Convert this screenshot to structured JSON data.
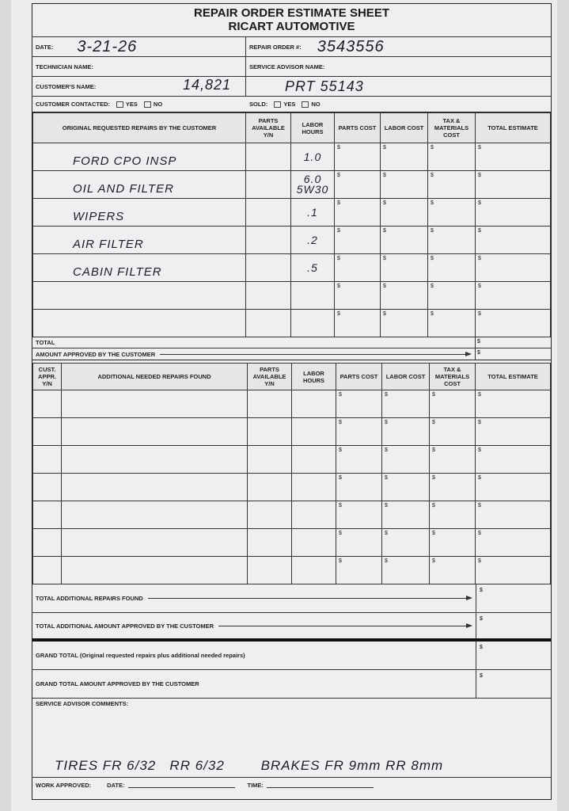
{
  "form": {
    "title": "REPAIR ORDER ESTIMATE SHEET",
    "company": "RICART AUTOMOTIVE"
  },
  "header": {
    "date_label": "DATE:",
    "date_value": "3-21-26",
    "ro_label": "REPAIR ORDER #:",
    "ro_value": "3543556",
    "technician_label": "TECHNICIAN NAME:",
    "technician_value": "",
    "advisor_label": "SERVICE ADVISOR NAME:",
    "advisor_value": "",
    "customer_label": "CUSTOMER'S NAME:",
    "customer_value": "14,821",
    "customer_value2": "PRT 55143",
    "contacted_label": "CUSTOMER CONTACTED:",
    "sold_label": "SOLD:",
    "yes": "YES",
    "no": "NO"
  },
  "original": {
    "headers": [
      "ORIGINAL REQUESTED REPAIRS BY THE CUSTOMER",
      "PARTS AVAILABLE Y/N",
      "LABOR HOURS",
      "PARTS COST",
      "LABOR COST",
      "TAX & MATERIALS COST",
      "TOTAL ESTIMATE"
    ],
    "rows": [
      {
        "repair": "FORD CPO INSP",
        "parts": "",
        "hours": "1.0"
      },
      {
        "repair": "OIL AND FILTER",
        "parts": "",
        "hours": "6.0 5W30"
      },
      {
        "repair": "WIPERS",
        "parts": "",
        "hours": ".1"
      },
      {
        "repair": "AIR FILTER",
        "parts": "",
        "hours": ".2"
      },
      {
        "repair": "CABIN FILTER",
        "parts": "",
        "hours": ".5"
      },
      {
        "repair": "",
        "parts": "",
        "hours": ""
      },
      {
        "repair": "",
        "parts": "",
        "hours": ""
      }
    ],
    "currency": "$",
    "total_label": "TOTAL",
    "approved_label": "AMOUNT APPROVED BY THE CUSTOMER"
  },
  "additional": {
    "headers": [
      "CUST. APPR. Y/N",
      "ADDITIONAL NEEDED REPAIRS FOUND",
      "PARTS AVAILABLE Y/N",
      "LABOR HOURS",
      "PARTS COST",
      "LABOR COST",
      "TAX & MATERIALS COST",
      "TOTAL ESTIMATE"
    ],
    "row_count": 7
  },
  "totals": {
    "found_label": "TOTAL ADDITIONAL REPAIRS FOUND",
    "approved_label": "TOTAL ADDITIONAL AMOUNT APPROVED BY THE CUSTOMER",
    "grand_label": "GRAND TOTAL (Original requested repairs plus additional needed repairs)",
    "grand_approved_label": "GRAND TOTAL AMOUNT APPROVED BY THE CUSTOMER"
  },
  "comments": {
    "label": "SERVICE ADVISOR COMMENTS:",
    "text": "TIRES FR 6/32   RR 6/32        BRAKES FR 9mm RR 8mm"
  },
  "footer": {
    "work_approved": "WORK APPROVED:",
    "date": "DATE:",
    "time": "TIME:"
  }
}
